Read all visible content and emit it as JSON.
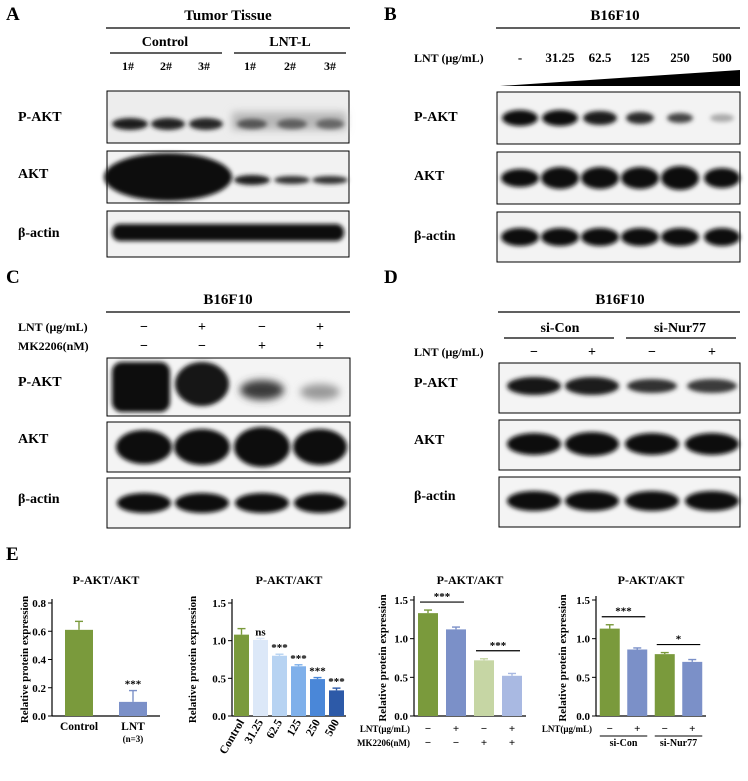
{
  "panels": {
    "A": {
      "letter": "A",
      "title": "Tumor Tissue",
      "groups": [
        "Control",
        "LNT-L"
      ],
      "lanes": [
        "1#",
        "2#",
        "3#",
        "1#",
        "2#",
        "3#"
      ],
      "rows": [
        "P-AKT",
        "AKT",
        "β-actin"
      ]
    },
    "B": {
      "letter": "B",
      "title": "B16F10",
      "treat_label": "LNT (μg/mL)",
      "lanes": [
        "-",
        "31.25",
        "62.5",
        "125",
        "250",
        "500"
      ],
      "rows": [
        "P-AKT",
        "AKT",
        "β-actin"
      ]
    },
    "C": {
      "letter": "C",
      "title": "B16F10",
      "treat_rows": [
        {
          "label": "LNT (μg/mL)",
          "signs": [
            "−",
            "+",
            "−",
            "+"
          ]
        },
        {
          "label": "MK2206(nM)",
          "signs": [
            "−",
            "−",
            "+",
            "+"
          ]
        }
      ],
      "rows": [
        "P-AKT",
        "AKT",
        "β-actin"
      ]
    },
    "D": {
      "letter": "D",
      "title": "B16F10",
      "groups": [
        "si-Con",
        "si-Nur77"
      ],
      "treat_label": "LNT (μg/mL)",
      "signs": [
        "−",
        "+",
        "−",
        "+"
      ],
      "rows": [
        "P-AKT",
        "AKT",
        "β-actin"
      ]
    },
    "E": {
      "letter": "E"
    }
  },
  "chart_data": [
    {
      "type": "bar",
      "title": "P-AKT/AKT",
      "ylabel": "Relative protein expression",
      "categories": [
        "Control",
        "LNT"
      ],
      "xnote": "(n=3)",
      "values": [
        0.61,
        0.1
      ],
      "errors": [
        0.06,
        0.08
      ],
      "colors": [
        "#7a9a3c",
        "#7b90c8"
      ],
      "ylim": [
        0,
        0.8
      ],
      "yticks": [
        "0.0",
        "0.2",
        "0.4",
        "0.6",
        "0.8"
      ],
      "sig": [
        "",
        "***"
      ]
    },
    {
      "type": "bar",
      "title": "P-AKT/AKT",
      "ylabel": "Relative protein expression",
      "categories": [
        "Control",
        "31.25",
        "62.5",
        "125",
        "250",
        "500"
      ],
      "values": [
        1.08,
        1.01,
        0.8,
        0.66,
        0.49,
        0.34
      ],
      "errors": [
        0.08,
        0.02,
        0.02,
        0.02,
        0.02,
        0.03
      ],
      "colors": [
        "#7a9a3c",
        "#dce8f8",
        "#b7d3f2",
        "#7fb0ea",
        "#4a87d8",
        "#2d5aa8"
      ],
      "ylim": [
        0,
        1.5
      ],
      "yticks": [
        "0.0",
        "0.5",
        "1.0",
        "1.5"
      ],
      "sig": [
        "",
        "ns",
        "***",
        "***",
        "***",
        "***"
      ]
    },
    {
      "type": "bar",
      "title": "P-AKT/AKT",
      "ylabel": "Relative protein expression",
      "values": [
        1.33,
        1.12,
        0.72,
        0.52
      ],
      "errors": [
        0.04,
        0.03,
        0.02,
        0.03
      ],
      "colors": [
        "#7a9a3c",
        "#7b90c8",
        "#c6d6a4",
        "#a9b9e2"
      ],
      "ylim": [
        0,
        1.5
      ],
      "yticks": [
        "0.0",
        "0.5",
        "1.0",
        "1.5"
      ],
      "rows": [
        {
          "label": "LNT(μg/mL)",
          "signs": [
            "−",
            "+",
            "−",
            "+"
          ]
        },
        {
          "label": "MK2206(nM)",
          "signs": [
            "−",
            "−",
            "+",
            "+"
          ]
        }
      ],
      "brackets": [
        {
          "from": 0,
          "to": 1,
          "label": "***"
        },
        {
          "from": 2,
          "to": 3,
          "label": "***"
        }
      ]
    },
    {
      "type": "bar",
      "title": "P-AKT/AKT",
      "ylabel": "Relative protein expression",
      "values": [
        1.13,
        0.86,
        0.8,
        0.7
      ],
      "errors": [
        0.05,
        0.02,
        0.02,
        0.03
      ],
      "colors": [
        "#7a9a3c",
        "#7b90c8",
        "#7a9a3c",
        "#7b90c8"
      ],
      "ylim": [
        0,
        1.5
      ],
      "yticks": [
        "0.0",
        "0.5",
        "1.0",
        "1.5"
      ],
      "rows": [
        {
          "label": "LNT(μg/mL)",
          "signs": [
            "−",
            "+",
            "−",
            "+"
          ]
        }
      ],
      "groups": [
        "si-Con",
        "si-Nur77"
      ],
      "brackets": [
        {
          "from": 0,
          "to": 1,
          "label": "***"
        },
        {
          "from": 2,
          "to": 3,
          "label": "*"
        }
      ]
    }
  ]
}
